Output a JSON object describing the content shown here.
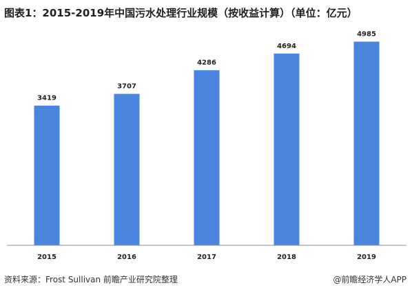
{
  "chart_data": {
    "type": "bar",
    "title": "图表1：2015-2019年中国污水处理行业规模（按收益计算）（单位：亿元）",
    "categories": [
      "2015",
      "2016",
      "2017",
      "2018",
      "2019"
    ],
    "series": [
      {
        "values": [
          3419,
          3707,
          4286,
          4694,
          4985
        ]
      }
    ],
    "xlabel": "",
    "ylabel": "",
    "ylim": [
      0,
      5500
    ],
    "grid": false,
    "bar_color": "#4a86e0",
    "axis_color": "#888888"
  },
  "footer": {
    "source": "资料来源：Frost Sullivan 前瞻产业研究院整理",
    "brand": "@前瞻经济学人APP"
  }
}
